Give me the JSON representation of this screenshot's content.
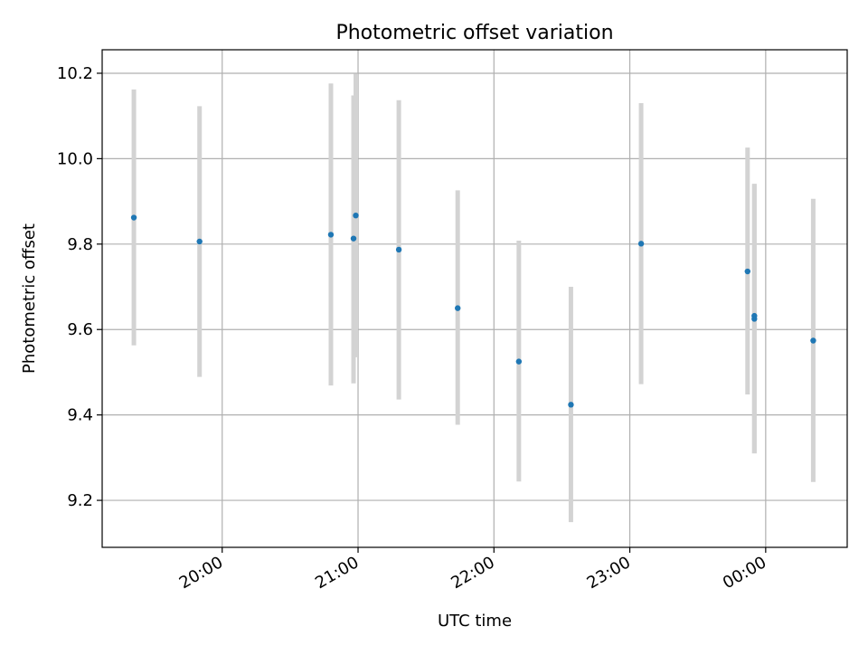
{
  "chart_data": {
    "type": "scatter",
    "title": "Photometric offset variation",
    "xlabel": "UTC time",
    "ylabel": "Photometric offset",
    "xlim": [
      "19:07",
      "00:36"
    ],
    "ylim": [
      9.09,
      10.255
    ],
    "x_unit": "UTC time (HH:MM); times after midnight fall on the next day",
    "x_ticks": [
      "20:00",
      "21:00",
      "22:00",
      "23:00",
      "00:00"
    ],
    "y_ticks": [
      9.2,
      9.4,
      9.6,
      9.8,
      10.0,
      10.2
    ],
    "grid": true,
    "series": [
      {
        "color": "#1f77b4",
        "errorbar_color": "#d3d3d3",
        "points": [
          {
            "x": "19:21",
            "y": 9.862,
            "ylow": 9.563,
            "yhigh": 10.162
          },
          {
            "x": "19:50",
            "y": 9.806,
            "ylow": 9.489,
            "yhigh": 10.123
          },
          {
            "x": "20:48",
            "y": 9.822,
            "ylow": 9.469,
            "yhigh": 10.176
          },
          {
            "x": "20:58",
            "y": 9.813,
            "ylow": 9.474,
            "yhigh": 10.148
          },
          {
            "x": "20:59",
            "y": 9.867,
            "ylow": 9.535,
            "yhigh": 10.199
          },
          {
            "x": "21:18",
            "y": 9.787,
            "ylow": 9.436,
            "yhigh": 10.137
          },
          {
            "x": "21:44",
            "y": 9.65,
            "ylow": 9.377,
            "yhigh": 9.926
          },
          {
            "x": "22:11",
            "y": 9.525,
            "ylow": 9.244,
            "yhigh": 9.808
          },
          {
            "x": "22:34",
            "y": 9.424,
            "ylow": 9.149,
            "yhigh": 9.7
          },
          {
            "x": "23:05",
            "y": 9.801,
            "ylow": 9.472,
            "yhigh": 10.13
          },
          {
            "x": "23:52",
            "y": 9.736,
            "ylow": 9.448,
            "yhigh": 10.026
          },
          {
            "x": "23:55",
            "y": 9.632,
            "ylow": 9.31,
            "yhigh": 9.941
          },
          {
            "x": "23:55",
            "y": 9.625,
            "ylow": 9.31,
            "yhigh": 9.941
          },
          {
            "x": "00:21",
            "y": 9.574,
            "ylow": 9.243,
            "yhigh": 9.906
          }
        ]
      }
    ]
  }
}
